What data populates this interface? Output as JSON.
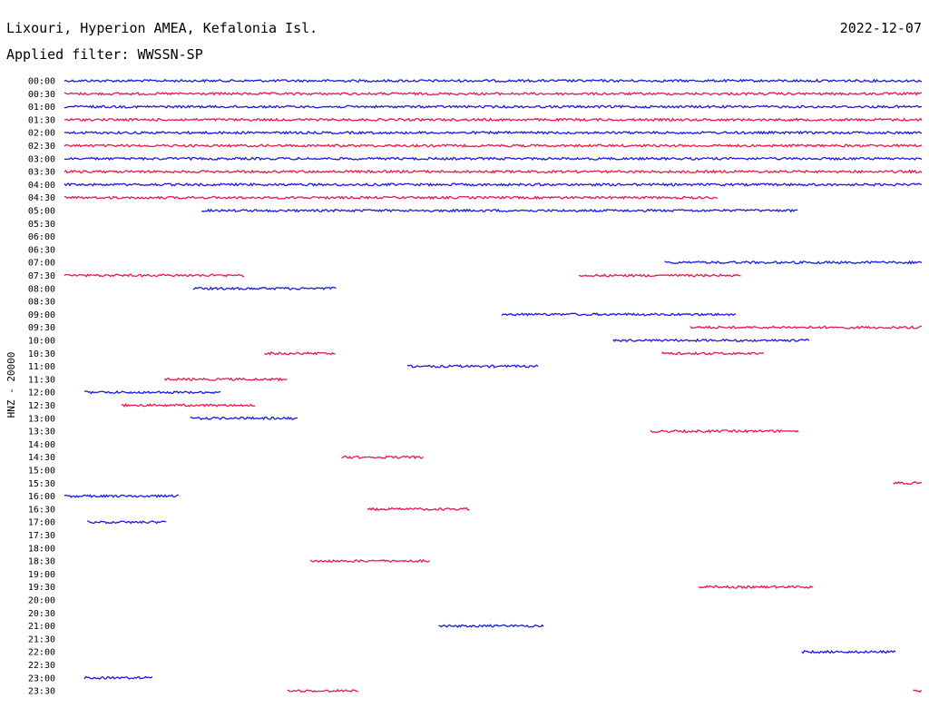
{
  "header": {
    "station": "Lixouri, Hyperion AMEA, Kefalonia Isl.",
    "date": "2022-12-07",
    "filter": "Applied filter: WWSSN-SP"
  },
  "colors": {
    "series_a": "#1a1adc",
    "series_b": "#e8184a"
  },
  "chart_data": {
    "type": "line",
    "title": "",
    "ylabel": "HNZ - 20000",
    "row_labels": [
      "00:00",
      "00:30",
      "01:00",
      "01:30",
      "02:00",
      "02:30",
      "03:00",
      "03:30",
      "04:00",
      "04:30",
      "05:00",
      "05:30",
      "06:00",
      "06:30",
      "07:00",
      "07:30",
      "08:00",
      "08:30",
      "09:00",
      "09:30",
      "10:00",
      "10:30",
      "11:00",
      "11:30",
      "12:00",
      "12:30",
      "13:00",
      "13:30",
      "14:00",
      "14:30",
      "15:00",
      "15:30",
      "16:00",
      "16:30",
      "17:00",
      "17:30",
      "18:00",
      "18:30",
      "19:00",
      "19:30",
      "20:00",
      "20:30",
      "21:00",
      "21:30",
      "22:00",
      "22:30",
      "23:00",
      "23:30"
    ],
    "x_unit": "minutes into row (0-30)",
    "traces": [
      {
        "row": 0,
        "segments": [
          [
            0,
            30
          ]
        ]
      },
      {
        "row": 1,
        "segments": [
          [
            0,
            30
          ]
        ]
      },
      {
        "row": 2,
        "segments": [
          [
            0,
            30
          ]
        ]
      },
      {
        "row": 3,
        "segments": [
          [
            0,
            30
          ]
        ]
      },
      {
        "row": 4,
        "segments": [
          [
            0,
            30
          ]
        ]
      },
      {
        "row": 5,
        "segments": [
          [
            0,
            30
          ]
        ]
      },
      {
        "row": 6,
        "segments": [
          [
            0,
            30
          ]
        ]
      },
      {
        "row": 7,
        "segments": [
          [
            0,
            30
          ]
        ]
      },
      {
        "row": 8,
        "segments": [
          [
            0,
            30
          ]
        ]
      },
      {
        "row": 9,
        "segments": [
          [
            0,
            22.9
          ]
        ]
      },
      {
        "row": 10,
        "segments": [
          [
            4.8,
            25.7
          ]
        ]
      },
      {
        "row": 14,
        "segments": [
          [
            21.0,
            30
          ]
        ]
      },
      {
        "row": 15,
        "segments": [
          [
            0,
            6.3
          ],
          [
            18.0,
            23.7
          ]
        ]
      },
      {
        "row": 16,
        "segments": [
          [
            4.5,
            9.5
          ]
        ]
      },
      {
        "row": 18,
        "segments": [
          [
            15.3,
            23.5
          ]
        ]
      },
      {
        "row": 19,
        "segments": [
          [
            21.9,
            30
          ]
        ]
      },
      {
        "row": 20,
        "segments": [
          [
            19.2,
            26.1
          ]
        ]
      },
      {
        "row": 21,
        "segments": [
          [
            7.0,
            9.5
          ],
          [
            20.9,
            24.5
          ]
        ]
      },
      {
        "row": 22,
        "segments": [
          [
            12.0,
            16.6
          ]
        ]
      },
      {
        "row": 23,
        "segments": [
          [
            3.5,
            7.8
          ]
        ]
      },
      {
        "row": 24,
        "segments": [
          [
            0.7,
            5.5
          ]
        ]
      },
      {
        "row": 25,
        "segments": [
          [
            2.0,
            6.7
          ]
        ]
      },
      {
        "row": 26,
        "segments": [
          [
            4.4,
            8.2
          ]
        ]
      },
      {
        "row": 27,
        "segments": [
          [
            20.5,
            25.7
          ]
        ]
      },
      {
        "row": 29,
        "segments": [
          [
            9.7,
            12.6
          ]
        ]
      },
      {
        "row": 31,
        "segments": [
          [
            29.0,
            30
          ]
        ]
      },
      {
        "row": 32,
        "segments": [
          [
            0,
            4.0
          ]
        ]
      },
      {
        "row": 33,
        "segments": [
          [
            10.6,
            14.2
          ]
        ]
      },
      {
        "row": 34,
        "segments": [
          [
            0.8,
            3.6
          ]
        ]
      },
      {
        "row": 37,
        "segments": [
          [
            8.6,
            12.8
          ]
        ]
      },
      {
        "row": 39,
        "segments": [
          [
            22.2,
            26.2
          ]
        ]
      },
      {
        "row": 42,
        "segments": [
          [
            13.1,
            16.8
          ]
        ]
      },
      {
        "row": 44,
        "segments": [
          [
            25.8,
            29.1
          ]
        ]
      },
      {
        "row": 46,
        "segments": [
          [
            0.7,
            3.1
          ]
        ]
      },
      {
        "row": 47,
        "segments": [
          [
            7.8,
            10.3
          ],
          [
            29.7,
            30
          ]
        ]
      }
    ]
  }
}
